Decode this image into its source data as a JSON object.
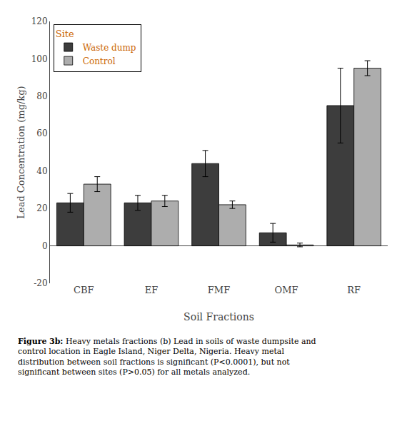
{
  "chart_data": {
    "type": "bar",
    "xlabel": "Soil Fractions",
    "ylabel": "Lead Concentration (mg/kg)",
    "categories": [
      "CBF",
      "EF",
      "FMF",
      "OMF",
      "RF"
    ],
    "series": [
      {
        "name": "Waste dump",
        "color": "#3d3d3d",
        "values": [
          23,
          23,
          44,
          7,
          75
        ],
        "errors": [
          5,
          4,
          7,
          5,
          20
        ]
      },
      {
        "name": "Control",
        "color": "#adadad",
        "values": [
          33,
          24,
          22,
          0.5,
          95
        ],
        "errors": [
          4,
          3,
          2,
          1,
          4
        ]
      }
    ],
    "ylim": [
      -20,
      120
    ],
    "yticks": [
      -20,
      0,
      20,
      40,
      60,
      80,
      100,
      120
    ],
    "grid": false,
    "legend": "upper left",
    "legend_title": "Site",
    "caption_bold": "Figure 3b:",
    "caption": "Heavy metals fractions (b) Lead in soils of waste dumpsite and control location in Eagle Island, Niger Delta, Nigeria. Heavy metal distribution between soil fractions is significant (P<0.0001), but not significant between sites (P>0.05) for all metals analyzed."
  }
}
